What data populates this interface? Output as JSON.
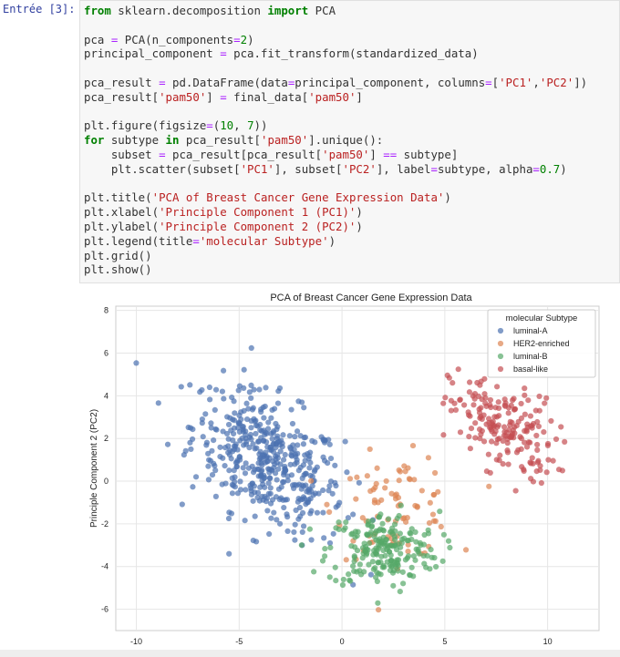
{
  "cell": {
    "prompt": "Entrée [3]:",
    "lines": [
      [
        [
          "kw",
          "from"
        ],
        [
          "t",
          " sklearn.decomposition "
        ],
        [
          "kw",
          "import"
        ],
        [
          "t",
          " PCA"
        ]
      ],
      [],
      [
        [
          "t",
          "pca "
        ],
        [
          "op",
          "="
        ],
        [
          "t",
          " PCA(n_components"
        ],
        [
          "op",
          "="
        ],
        [
          "num",
          "2"
        ],
        [
          "t",
          ")"
        ]
      ],
      [
        [
          "t",
          "principal_component "
        ],
        [
          "op",
          "="
        ],
        [
          "t",
          " pca.fit_transform(standardized_data)"
        ]
      ],
      [],
      [
        [
          "t",
          "pca_result "
        ],
        [
          "op",
          "="
        ],
        [
          "t",
          " pd.DataFrame(data"
        ],
        [
          "op",
          "="
        ],
        [
          "t",
          "principal_component, columns"
        ],
        [
          "op",
          "="
        ],
        [
          "t",
          "["
        ],
        [
          "str",
          "'PC1'"
        ],
        [
          "t",
          ","
        ],
        [
          "str",
          "'PC2'"
        ],
        [
          "t",
          "])"
        ]
      ],
      [
        [
          "t",
          "pca_result["
        ],
        [
          "str",
          "'pam50'"
        ],
        [
          "t",
          "] "
        ],
        [
          "op",
          "="
        ],
        [
          "t",
          " final_data["
        ],
        [
          "str",
          "'pam50'"
        ],
        [
          "t",
          "]"
        ]
      ],
      [],
      [
        [
          "t",
          "plt.figure(figsize"
        ],
        [
          "op",
          "="
        ],
        [
          "t",
          "("
        ],
        [
          "num",
          "10"
        ],
        [
          "t",
          ", "
        ],
        [
          "num",
          "7"
        ],
        [
          "t",
          "))"
        ]
      ],
      [
        [
          "kw",
          "for"
        ],
        [
          "t",
          " subtype "
        ],
        [
          "kw",
          "in"
        ],
        [
          "t",
          " pca_result["
        ],
        [
          "str",
          "'pam50'"
        ],
        [
          "t",
          "].unique():"
        ]
      ],
      [
        [
          "t",
          "    subset "
        ],
        [
          "op",
          "="
        ],
        [
          "t",
          " pca_result[pca_result["
        ],
        [
          "str",
          "'pam50'"
        ],
        [
          "t",
          "] "
        ],
        [
          "op",
          "=="
        ],
        [
          "t",
          " subtype]"
        ]
      ],
      [
        [
          "t",
          "    plt.scatter(subset["
        ],
        [
          "str",
          "'PC1'"
        ],
        [
          "t",
          "], subset["
        ],
        [
          "str",
          "'PC2'"
        ],
        [
          "t",
          "], label"
        ],
        [
          "op",
          "="
        ],
        [
          "t",
          "subtype, alpha"
        ],
        [
          "op",
          "="
        ],
        [
          "num",
          "0.7"
        ],
        [
          "t",
          ")"
        ]
      ],
      [],
      [
        [
          "t",
          "plt.title("
        ],
        [
          "str",
          "'PCA of Breast Cancer Gene Expression Data'"
        ],
        [
          "t",
          ")"
        ]
      ],
      [
        [
          "t",
          "plt.xlabel("
        ],
        [
          "str",
          "'Principle Component 1 (PC1)'"
        ],
        [
          "t",
          ")"
        ]
      ],
      [
        [
          "t",
          "plt.ylabel("
        ],
        [
          "str",
          "'Principle Component 2 (PC2)'"
        ],
        [
          "t",
          ")"
        ]
      ],
      [
        [
          "t",
          "plt.legend(title"
        ],
        [
          "op",
          "="
        ],
        [
          "str",
          "'molecular Subtype'"
        ],
        [
          "t",
          ")"
        ]
      ],
      [
        [
          "t",
          "plt.grid()"
        ]
      ],
      [
        [
          "t",
          "plt.show()"
        ]
      ]
    ]
  },
  "chart_data": {
    "type": "scatter",
    "title": "PCA of Breast Cancer Gene Expression Data",
    "xlabel": "",
    "ylabel": "Principle Component 2 (PC2)",
    "xlim": [
      -11,
      12.5
    ],
    "ylim": [
      -7,
      8.2
    ],
    "xticks": [
      -10,
      -5,
      0,
      5,
      10
    ],
    "yticks": [
      -6,
      -4,
      -2,
      0,
      2,
      4,
      6,
      8
    ],
    "legend_title": "molecular Subtype",
    "legend_position": "top-right",
    "alpha": 0.7,
    "series": [
      {
        "name": "luminal-A",
        "color": "#4c72b0",
        "center": [
          -3.6,
          0.9
        ],
        "spread": [
          2.3,
          1.9
        ],
        "count": 460
      },
      {
        "name": "HER2-enriched",
        "color": "#dd8452",
        "center": [
          2.6,
          -1.2
        ],
        "spread": [
          1.8,
          1.5
        ],
        "count": 85
      },
      {
        "name": "luminal-B",
        "color": "#55a868",
        "center": [
          2.0,
          -3.2
        ],
        "spread": [
          1.7,
          1.1
        ],
        "count": 210
      },
      {
        "name": "basal-like",
        "color": "#c44e52",
        "center": [
          7.8,
          2.5
        ],
        "spread": [
          1.6,
          1.3
        ],
        "count": 190
      }
    ]
  }
}
